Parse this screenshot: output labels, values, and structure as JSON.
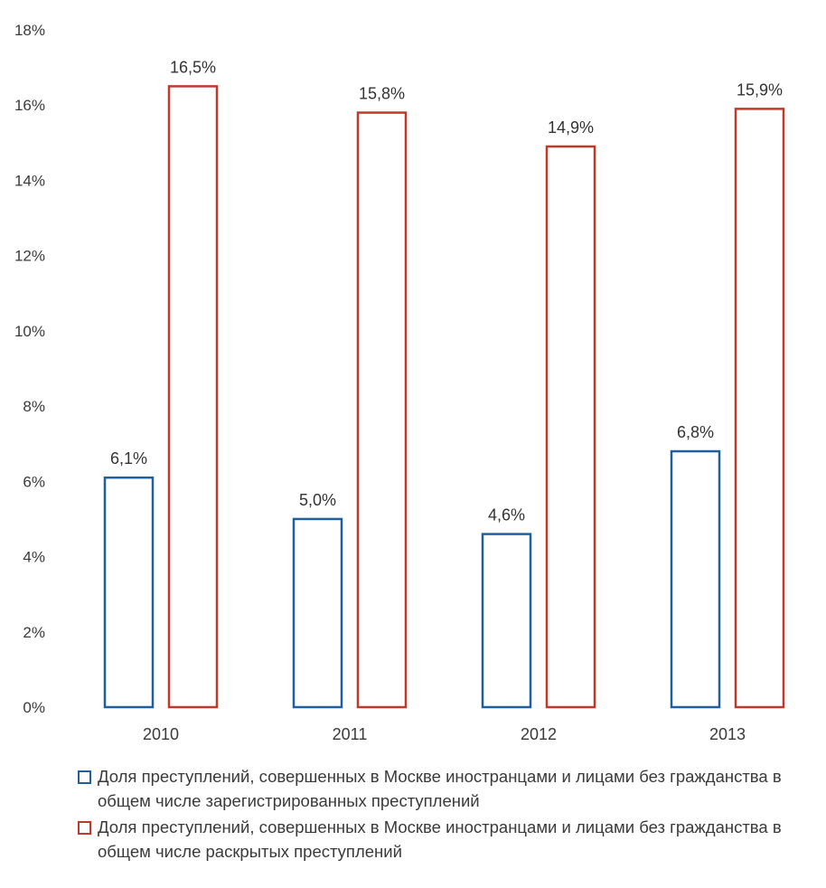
{
  "chart_data": {
    "type": "bar",
    "categories": [
      "2010",
      "2011",
      "2012",
      "2013"
    ],
    "series": [
      {
        "name": "Доля преступлений, совершенных в Москве иностранцами и лицами без гражданства в общем числе зарегистрированных преступлений",
        "values": [
          6.1,
          5.0,
          4.6,
          6.8
        ],
        "labels": [
          "6,1%",
          "5,0%",
          "4,6%",
          "6,8%"
        ],
        "color": "#1f5fa0"
      },
      {
        "name": "Доля преступлений, совершенных в Москве иностранцами и лицами без гражданства  в общем числе раскрытых преступлений",
        "values": [
          16.5,
          15.8,
          14.9,
          15.9
        ],
        "labels": [
          "16,5%",
          "15,8%",
          "14,9%",
          "15,9%"
        ],
        "color": "#c0392b"
      }
    ],
    "ylim": [
      0,
      18
    ],
    "yticks": [
      "0%",
      "2%",
      "4%",
      "6%",
      "8%",
      "10%",
      "12%",
      "14%",
      "16%",
      "18%"
    ],
    "grid": false,
    "bar_style": "outline",
    "legend_position": "bottom"
  }
}
